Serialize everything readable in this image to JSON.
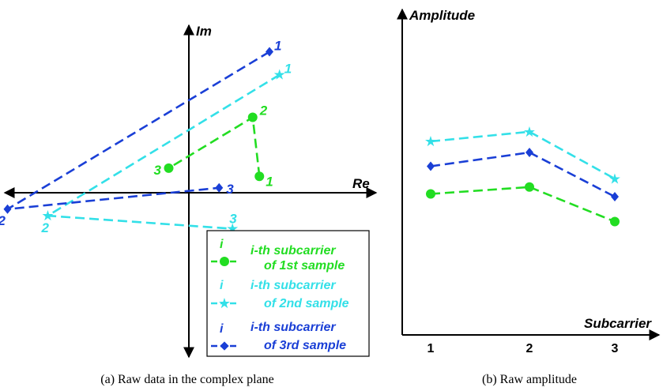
{
  "chart_data": [
    {
      "type": "scatter",
      "title": "",
      "caption": "(a)  Raw data in the complex plane",
      "xlabel": "Re",
      "ylabel": "Im",
      "series": [
        {
          "name": "1st sample",
          "color": "#22dd22",
          "marker": "circle",
          "points": [
            {
              "label": "1",
              "re": 2.1,
              "im": 0.5
            },
            {
              "label": "2",
              "re": 1.9,
              "im": 2.3
            },
            {
              "label": "3",
              "re": -0.6,
              "im": 0.75
            }
          ]
        },
        {
          "name": "2nd sample",
          "color": "#33e0e8",
          "marker": "star",
          "points": [
            {
              "label": "1",
              "re": 2.7,
              "im": 3.6
            },
            {
              "label": "2",
              "re": -4.2,
              "im": -0.7
            },
            {
              "label": "3",
              "re": 1.3,
              "im": -1.1
            }
          ]
        },
        {
          "name": "3rd sample",
          "color": "#1a3fd6",
          "marker": "diamond",
          "points": [
            {
              "label": "1",
              "re": 2.4,
              "im": 4.3
            },
            {
              "label": "2",
              "re": -5.4,
              "im": -0.5
            },
            {
              "label": "3",
              "re": 0.9,
              "im": 0.15
            }
          ]
        }
      ],
      "legend": {
        "placement": "bottom-right",
        "entries": [
          {
            "marker_label": "i",
            "line1": "i-th subcarrier",
            "line2": "of 1st sample",
            "color": "#22dd22"
          },
          {
            "marker_label": "i",
            "line1": "i-th subcarrier",
            "line2": "of 2nd sample",
            "color": "#33e0e8"
          },
          {
            "marker_label": "i",
            "line1": "i-th subcarrier",
            "line2": "of 3rd sample",
            "color": "#1a3fd6"
          }
        ]
      }
    },
    {
      "type": "line",
      "title": "",
      "caption": "(b)  Raw amplitude",
      "xlabel": "Subcarrier",
      "ylabel": "Amplitude",
      "categories": [
        "1",
        "2",
        "3"
      ],
      "ylim": [
        0,
        10
      ],
      "grid": false,
      "series": [
        {
          "name": "1st sample",
          "color": "#22dd22",
          "marker": "circle",
          "values": [
            5.1,
            5.35,
            4.1
          ]
        },
        {
          "name": "2nd sample",
          "color": "#33e0e8",
          "marker": "star",
          "values": [
            7.0,
            7.35,
            5.65
          ]
        },
        {
          "name": "3rd sample",
          "color": "#1a3fd6",
          "marker": "diamond",
          "values": [
            6.1,
            6.6,
            5.0
          ]
        }
      ]
    }
  ]
}
